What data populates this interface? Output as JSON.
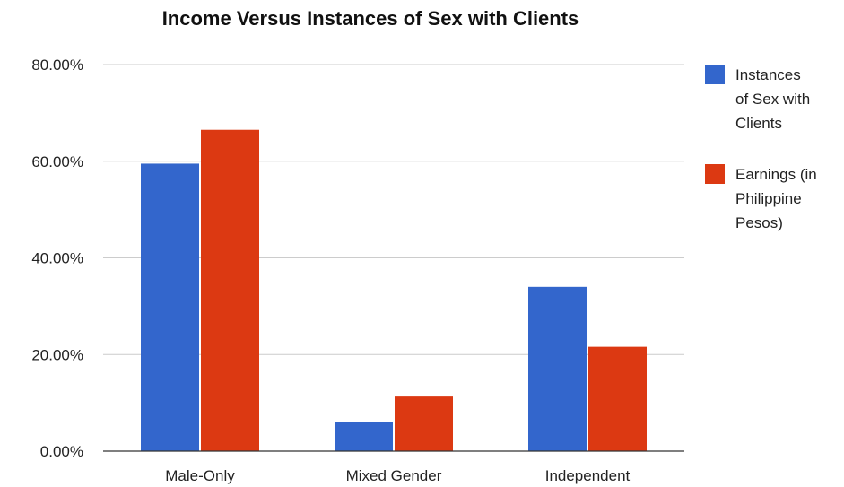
{
  "chart_data": {
    "type": "bar",
    "title": "Income Versus Instances of Sex with Clients",
    "categories": [
      "Male-Only",
      "Mixed Gender",
      "Independent"
    ],
    "series": [
      {
        "name": "Instances of Sex with Clients",
        "legend_lines": [
          "Instances",
          "of Sex with",
          "Clients"
        ],
        "color": "#3366cc",
        "values": [
          59.5,
          6.1,
          34.0
        ]
      },
      {
        "name": "Earnings (in Philippine Pesos)",
        "legend_lines": [
          "Earnings (in",
          "Philippine",
          "Pesos)"
        ],
        "color": "#dc3912",
        "values": [
          66.5,
          11.3,
          21.6
        ]
      }
    ],
    "yticks": [
      "0.00%",
      "20.00%",
      "40.00%",
      "60.00%",
      "80.00%"
    ],
    "ylim": [
      0,
      80
    ],
    "xlabel": "",
    "ylabel": "",
    "grid": true,
    "legend_position": "right"
  }
}
